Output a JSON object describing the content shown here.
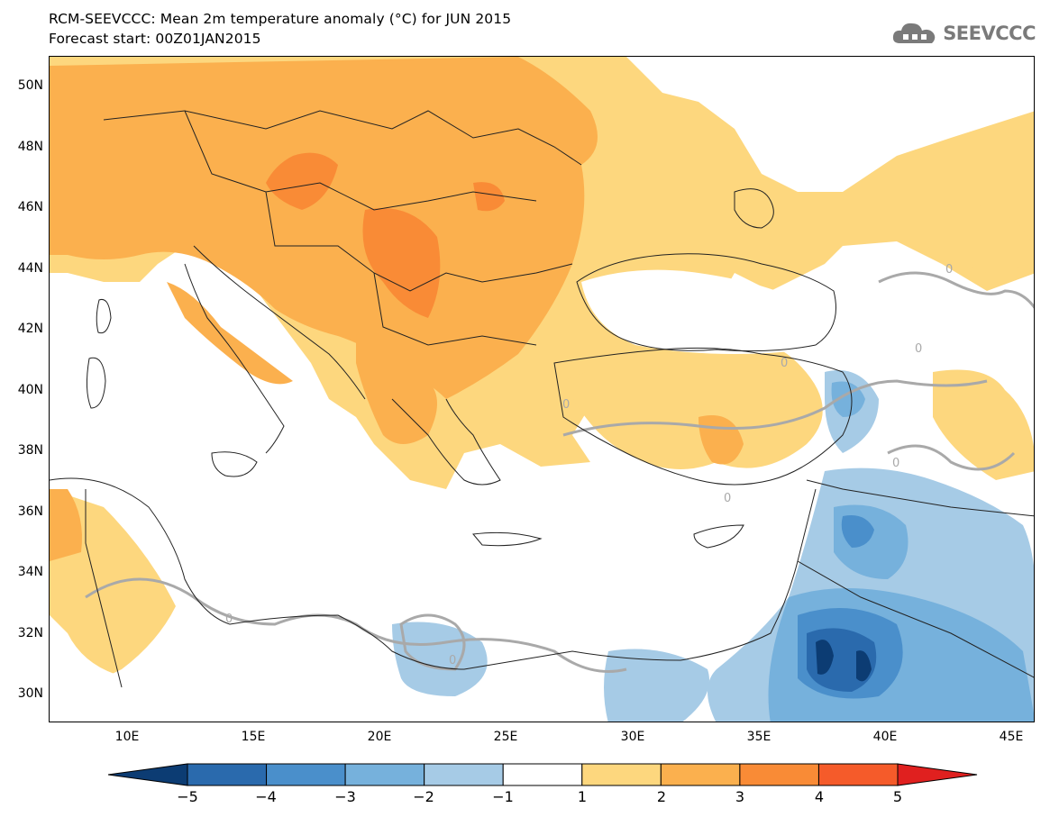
{
  "title": {
    "line1": "RCM-SEEVCCC: Mean 2m temperature anomaly (°C) for JUN 2015",
    "line2": "Forecast start: 00Z01JAN2015"
  },
  "logo": {
    "text": "SEEVCCC",
    "icon": "cloud-icon"
  },
  "map": {
    "lat_labels": [
      "50N",
      "48N",
      "46N",
      "44N",
      "42N",
      "40N",
      "38N",
      "36N",
      "34N",
      "32N",
      "30N"
    ],
    "lon_labels": [
      "10E",
      "15E",
      "20E",
      "25E",
      "30E",
      "35E",
      "40E",
      "45E"
    ],
    "contour_labels": [
      "0",
      "0",
      "0",
      "0",
      "0",
      "0",
      "0",
      "0"
    ],
    "lat_range": [
      29,
      51
    ],
    "lon_range": [
      7,
      46
    ]
  },
  "colorbar": {
    "levels": [
      "−5",
      "−4",
      "−3",
      "−2",
      "−1",
      "1",
      "2",
      "3",
      "4",
      "5"
    ],
    "colors": [
      "#0c3c73",
      "#2a6aad",
      "#4a8fcb",
      "#76b1dc",
      "#a6cbe6",
      "#ffffff",
      "#fdd77e",
      "#fbb04e",
      "#f98b36",
      "#f55b2a",
      "#e0201f"
    ]
  },
  "palette": {
    "warm1": "#fdd77e",
    "warm2": "#fbb04e",
    "warm3": "#f98b36",
    "warm4": "#f55b2a",
    "warm5": "#e0201f",
    "cool1": "#a6cbe6",
    "cool2": "#76b1dc",
    "cool3": "#4a8fcb",
    "cool4": "#2a6aad",
    "cool5": "#0c3c73",
    "contour": "#a9a9a9"
  }
}
